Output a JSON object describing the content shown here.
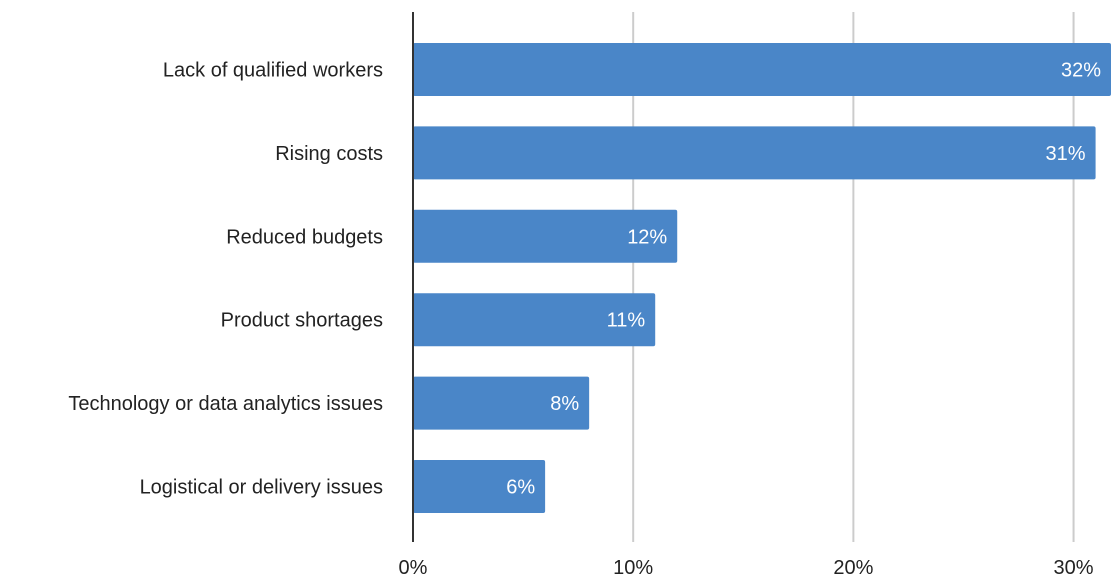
{
  "chart_data": {
    "type": "bar",
    "orientation": "horizontal",
    "categories": [
      "Lack of qualified workers",
      "Rising costs",
      "Reduced budgets",
      "Product shortages",
      "Technology or data analytics issues",
      "Logistical or delivery issues"
    ],
    "values": [
      32,
      31,
      12,
      11,
      8,
      6
    ],
    "data_labels": [
      "32%",
      "31%",
      "12%",
      "11%",
      "8%",
      "6%"
    ],
    "x_ticks": [
      0,
      10,
      20,
      30
    ],
    "x_tick_labels": [
      "0%",
      "10%",
      "20%",
      "30%"
    ],
    "xlim": [
      0,
      31.7
    ],
    "title": "",
    "xlabel": "",
    "ylabel": "",
    "grid": "vertical",
    "legend": "none",
    "colors": {
      "bar": "#4a86c8",
      "grid": "#cccccc",
      "axis": "#333333",
      "bar_label": "#ffffff",
      "text": "#222222"
    }
  }
}
